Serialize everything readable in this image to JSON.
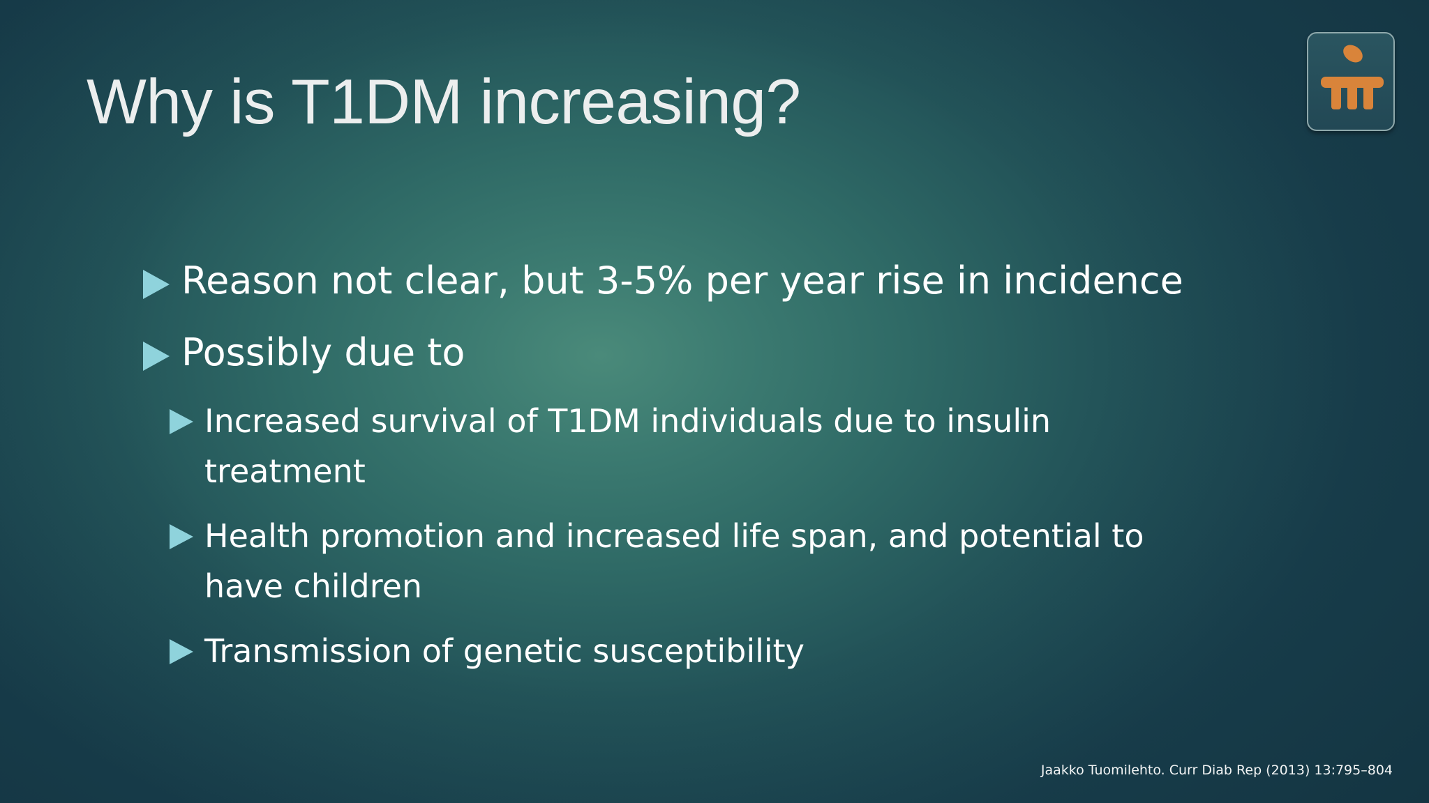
{
  "slide": {
    "title": "Why is T1DM increasing?",
    "bullets": [
      {
        "level": 1,
        "text": "Reason not clear, but 3-5% per year rise in incidence"
      },
      {
        "level": 1,
        "text": "Possibly due to"
      },
      {
        "level": 2,
        "text": "Increased survival of T1DM individuals due to insulin treatment"
      },
      {
        "level": 2,
        "text": "Health promotion and increased life span, and potential to have children"
      },
      {
        "level": 2,
        "text": "Transmission of genetic susceptibility"
      }
    ],
    "citation": "Jaakko Tuomilehto. Curr Diab Rep (2013) 13:795–804"
  },
  "logo": {
    "icon": "figure-at-desk-logo-icon",
    "color": "#d9843a"
  },
  "colors": {
    "background_center": "#4a8a7a",
    "background_edge": "#1a4250",
    "title": "#eceeee",
    "bullet_arrow": "#8fd3dc",
    "body_text": "#ffffff"
  }
}
